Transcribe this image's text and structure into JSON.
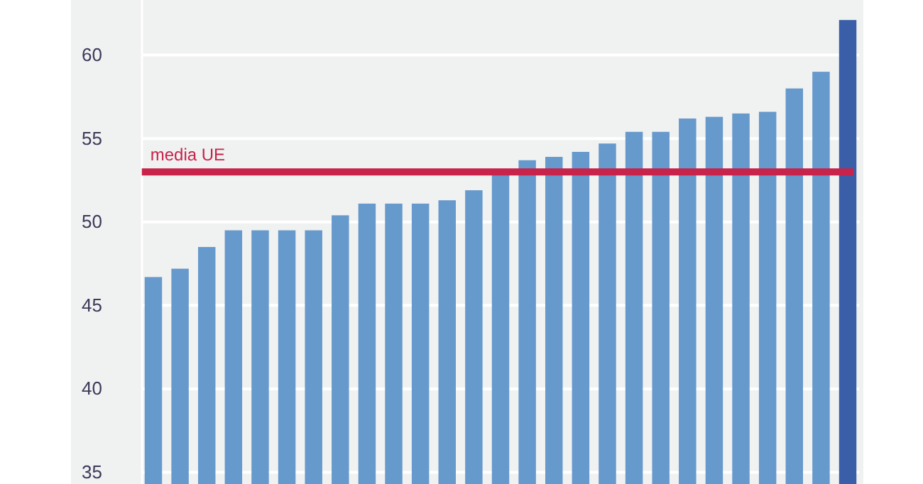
{
  "chart_data": {
    "type": "bar",
    "categories": [
      null,
      null,
      null,
      null,
      null,
      null,
      null,
      null,
      null,
      null,
      null,
      null,
      null,
      null,
      null,
      null,
      null,
      null,
      null,
      null,
      null,
      null,
      null,
      null,
      null,
      null,
      null
    ],
    "values": [
      46.7,
      47.2,
      48.5,
      49.5,
      49.5,
      49.5,
      49.5,
      50.4,
      51.1,
      51.1,
      51.1,
      51.3,
      51.9,
      52.8,
      53.7,
      53.9,
      54.2,
      54.7,
      55.4,
      55.4,
      56.2,
      56.3,
      56.5,
      56.6,
      58.0,
      59.0,
      62.1
    ],
    "colors": [
      "#6699cc",
      "#6699cc",
      "#6699cc",
      "#6699cc",
      "#6699cc",
      "#6699cc",
      "#6699cc",
      "#6699cc",
      "#6699cc",
      "#6699cc",
      "#6699cc",
      "#6699cc",
      "#6699cc",
      "#6699cc",
      "#6699cc",
      "#6699cc",
      "#6699cc",
      "#6699cc",
      "#6699cc",
      "#6699cc",
      "#6699cc",
      "#6699cc",
      "#6699cc",
      "#6699cc",
      "#6699cc",
      "#6699cc",
      "#3a5fa8"
    ],
    "ylim": [
      34.3,
      63.3
    ],
    "yticks": [
      35,
      40,
      45,
      50,
      55,
      60
    ],
    "grid": "y",
    "ref_lines": [
      {
        "axis": "y",
        "value": 53,
        "label": "media UE",
        "color": "#c8234a"
      }
    ]
  }
}
